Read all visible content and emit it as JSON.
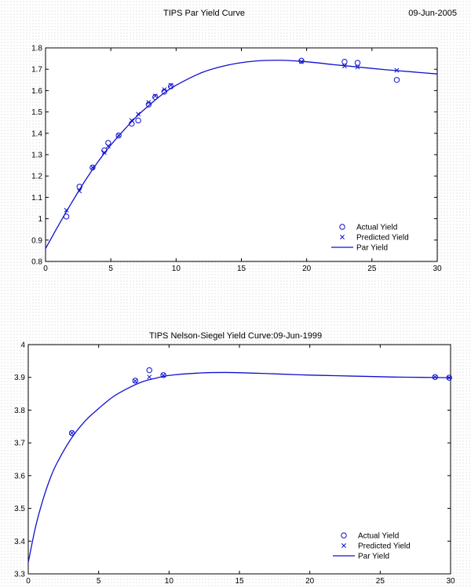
{
  "chart_data": [
    {
      "type": "line",
      "title": "TIPS Par Yield Curve",
      "date_label": "09-Jun-2005",
      "xlim": [
        0,
        30
      ],
      "ylim": [
        0.8,
        1.8
      ],
      "x_ticks": [
        "0",
        "5",
        "10",
        "15",
        "20",
        "25",
        "30"
      ],
      "y_ticks": [
        "0.8",
        "0.9",
        "1",
        "1.1",
        "1.2",
        "1.3",
        "1.4",
        "1.5",
        "1.6",
        "1.7",
        "1.8"
      ],
      "grid": false,
      "legend_position": "bottom-right",
      "series": [
        {
          "name": "Actual Yield",
          "marker": "circle",
          "x": [
            1.6,
            2.6,
            3.6,
            4.5,
            4.8,
            5.6,
            6.6,
            7.1,
            7.9,
            8.4,
            9.1,
            9.6,
            19.6,
            22.9,
            23.9,
            26.9
          ],
          "y": [
            1.01,
            1.15,
            1.24,
            1.32,
            1.355,
            1.39,
            1.445,
            1.46,
            1.535,
            1.57,
            1.595,
            1.62,
            1.74,
            1.735,
            1.73,
            1.65
          ]
        },
        {
          "name": "Predicted Yield",
          "marker": "x",
          "x": [
            1.6,
            2.6,
            3.6,
            4.5,
            4.8,
            5.6,
            6.6,
            7.1,
            7.9,
            8.4,
            9.1,
            9.6,
            19.6,
            22.9,
            23.9,
            26.9
          ],
          "y": [
            1.04,
            1.13,
            1.24,
            1.31,
            1.34,
            1.39,
            1.46,
            1.49,
            1.545,
            1.575,
            1.605,
            1.625,
            1.735,
            1.715,
            1.71,
            1.695
          ]
        },
        {
          "name": "Par Yield",
          "style": "line",
          "x": [
            0,
            1,
            2,
            3,
            4,
            5,
            6,
            7,
            8,
            9,
            10,
            12,
            14,
            16,
            18,
            20,
            22,
            24,
            26,
            28,
            30
          ],
          "y": [
            0.86,
            0.97,
            1.075,
            1.175,
            1.265,
            1.345,
            1.415,
            1.48,
            1.535,
            1.585,
            1.625,
            1.685,
            1.72,
            1.738,
            1.742,
            1.735,
            1.722,
            1.71,
            1.698,
            1.688,
            1.678
          ]
        }
      ]
    },
    {
      "type": "line",
      "title": "TIPS Nelson-Siegel Yield Curve:09-Jun-1999",
      "xlim": [
        0,
        30
      ],
      "ylim": [
        3.3,
        4.0
      ],
      "x_ticks": [
        "0",
        "5",
        "10",
        "15",
        "20",
        "25",
        "30"
      ],
      "y_ticks": [
        "3.3",
        "3.4",
        "3.5",
        "3.6",
        "3.7",
        "3.8",
        "3.9",
        "4"
      ],
      "grid": false,
      "legend_position": "bottom-right",
      "series": [
        {
          "name": "Actual Yield",
          "marker": "circle",
          "x": [
            3.1,
            7.6,
            8.6,
            9.6,
            28.9,
            29.9
          ],
          "y": [
            3.73,
            3.89,
            3.922,
            3.907,
            3.901,
            3.899
          ]
        },
        {
          "name": "Predicted Yield",
          "marker": "x",
          "x": [
            3.1,
            7.6,
            8.6,
            9.6,
            28.9,
            29.9
          ],
          "y": [
            3.73,
            3.889,
            3.901,
            3.906,
            3.901,
            3.899
          ]
        },
        {
          "name": "Par Yield",
          "style": "line",
          "x": [
            0,
            0.5,
            1,
            1.5,
            2,
            3,
            4,
            5,
            6,
            7,
            8,
            9,
            10,
            12,
            14,
            16,
            18,
            20,
            22,
            24,
            26,
            28,
            30
          ],
          "y": [
            3.335,
            3.44,
            3.52,
            3.585,
            3.635,
            3.71,
            3.765,
            3.805,
            3.84,
            3.865,
            3.885,
            3.897,
            3.906,
            3.913,
            3.915,
            3.913,
            3.91,
            3.907,
            3.905,
            3.903,
            3.901,
            3.9,
            3.899
          ]
        }
      ]
    }
  ],
  "colors": {
    "series": "#1010d0",
    "axes": "#000000"
  }
}
